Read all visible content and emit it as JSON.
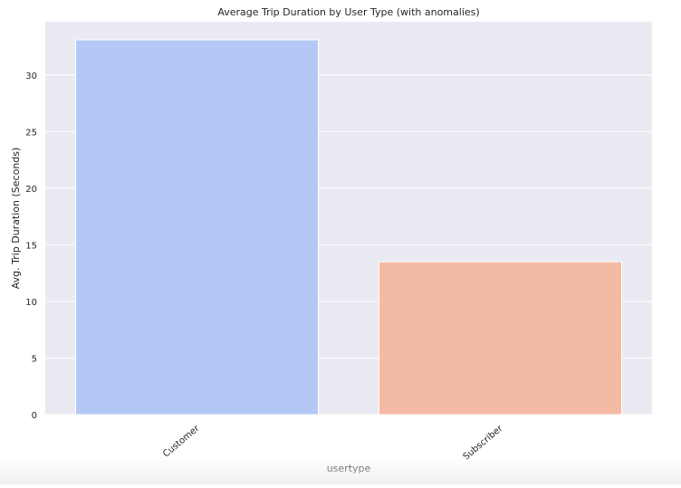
{
  "chart_data": {
    "type": "bar",
    "title": "Average Trip Duration by User Type (with anomalies)",
    "xlabel": "usertype",
    "ylabel": "Avg. Trip Duration (Seconds)",
    "categories": [
      "Customer",
      "Subscriber"
    ],
    "values": [
      33.1,
      13.5
    ],
    "colors": [
      "#b3c8f5",
      "#f4bba4"
    ],
    "ylim": [
      0,
      34.7
    ],
    "yticks": [
      0,
      5,
      10,
      15,
      20,
      25,
      30
    ],
    "grid": true,
    "background": "#eaeaf2",
    "gridColor": "#ffffff"
  }
}
